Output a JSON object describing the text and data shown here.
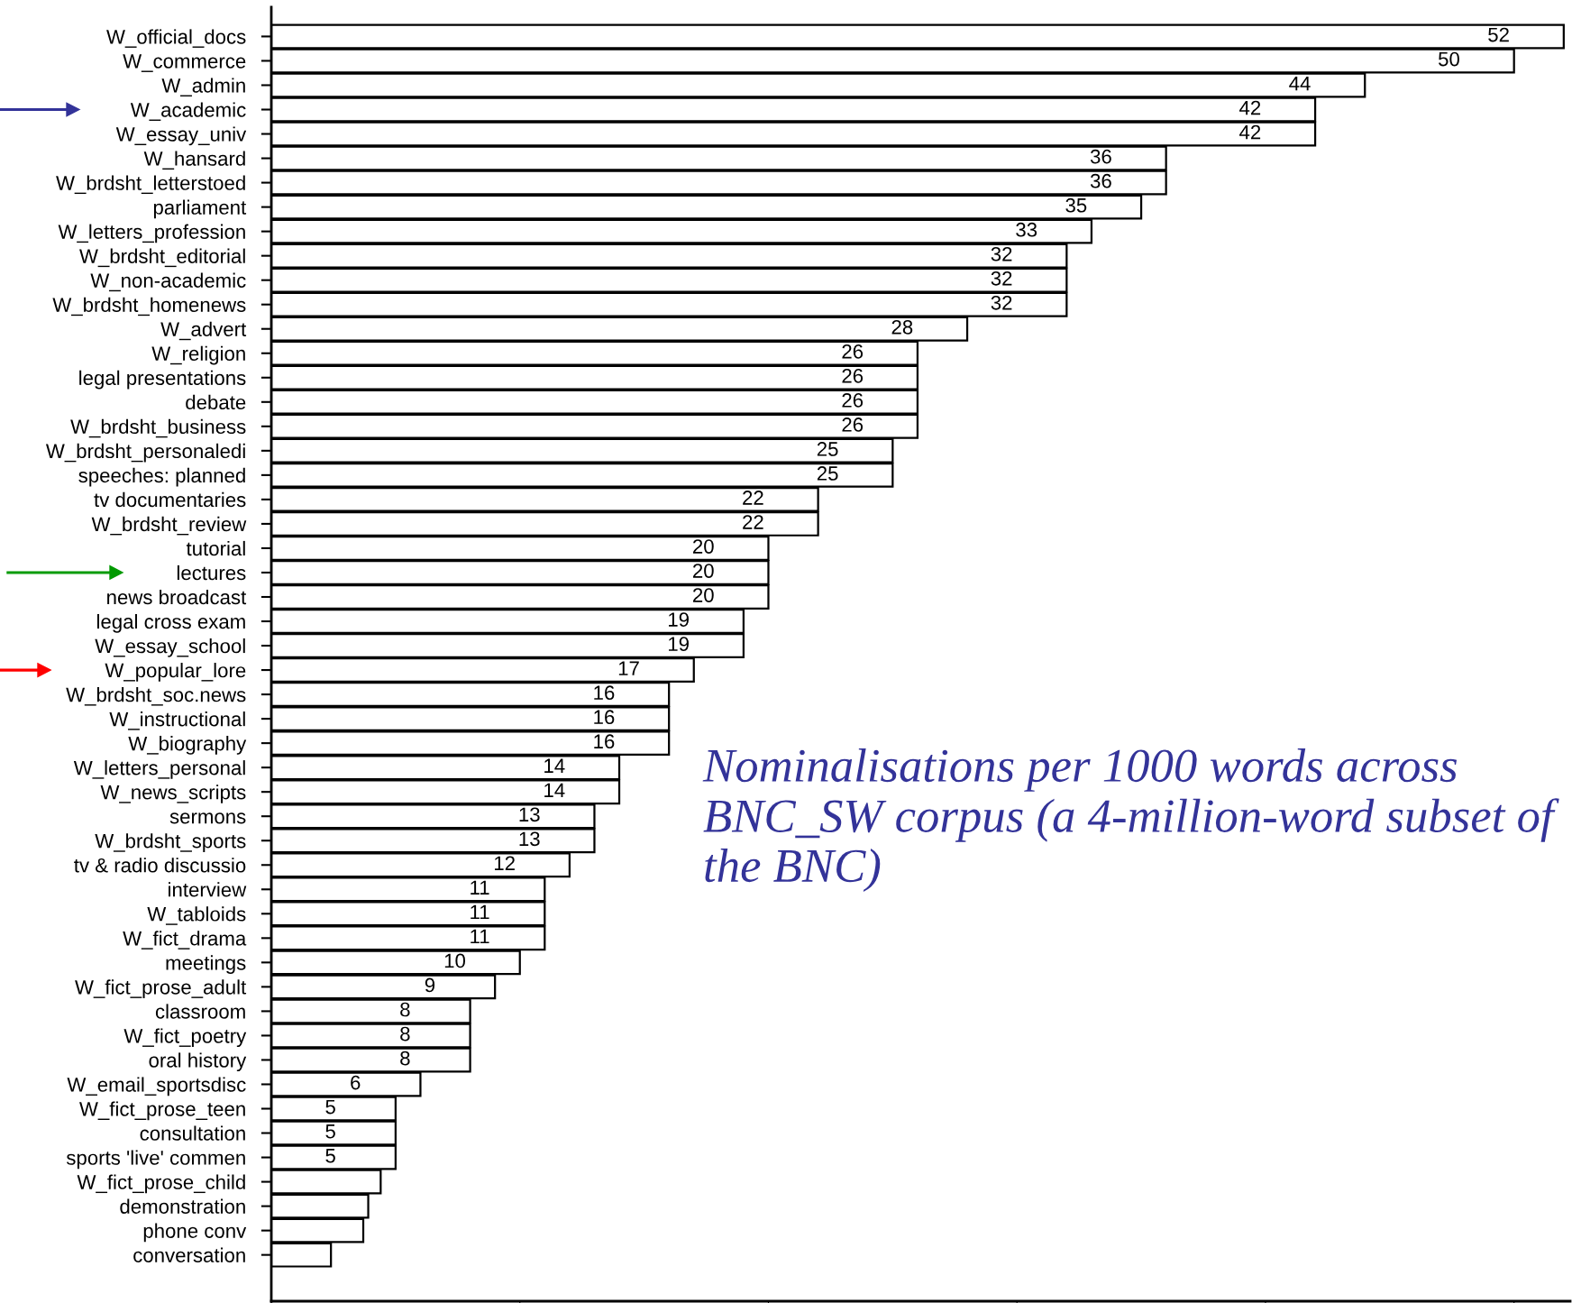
{
  "chart_data": {
    "type": "bar",
    "orientation": "horizontal",
    "title": "Nominalisations per 1000 words across BNC_SW corpus (a 4-million-word subset of the BNC)",
    "categories": [
      "W_official_docs",
      "W_commerce",
      "W_admin",
      "W_academic",
      "W_essay_univ",
      "W_hansard",
      "W_brdsht_letterstoed",
      "parliament",
      "W_letters_profession",
      "W_brdsht_editorial",
      "W_non-academic",
      "W_brdsht_homenews",
      "W_advert",
      "W_religion",
      "legal presentations",
      "debate",
      "W_brdsht_business",
      "W_brdsht_personaledi",
      "speeches: planned",
      "tv documentaries",
      "W_brdsht_review",
      "tutorial",
      "lectures",
      "news broadcast",
      "legal cross exam",
      "W_essay_school",
      "W_popular_lore",
      "W_brdsht_soc.news",
      "W_instructional",
      "W_biography",
      "W_letters_personal",
      "W_news_scripts",
      "sermons",
      "W_brdsht_sports",
      "tv & radio discussio",
      "interview",
      "W_tabloids",
      "W_fict_drama",
      "meetings",
      "W_fict_prose_adult",
      "classroom",
      "W_fict_poetry",
      "oral history",
      "W_email_sportsdisc",
      "W_fict_prose_teen",
      "consultation",
      "sports 'live' commen",
      "W_fict_prose_child",
      "demonstration",
      "phone conv",
      "conversation"
    ],
    "values": [
      52,
      50,
      44,
      42,
      42,
      36,
      36,
      35,
      33,
      32,
      32,
      32,
      28,
      26,
      26,
      26,
      26,
      25,
      25,
      22,
      22,
      20,
      20,
      20,
      19,
      19,
      17,
      16,
      16,
      16,
      14,
      14,
      13,
      13,
      12,
      11,
      11,
      11,
      10,
      9,
      8,
      8,
      8,
      6,
      5,
      5,
      5,
      4.4,
      3.9,
      3.7,
      2.4
    ],
    "value_labels": [
      "52",
      "50",
      "44",
      "42",
      "42",
      "36",
      "36",
      "35",
      "33",
      "32",
      "32",
      "32",
      "28",
      "26",
      "26",
      "26",
      "26",
      "25",
      "25",
      "22",
      "22",
      "20",
      "20",
      "20",
      "19",
      "19",
      "17",
      "16",
      "16",
      "16",
      "14",
      "14",
      "13",
      "13",
      "12",
      "11",
      "11",
      "11",
      "10",
      "9",
      "8",
      "8",
      "8",
      "6",
      "5",
      "5",
      "5",
      null,
      null,
      null,
      null
    ],
    "color": "#ffffff",
    "tick_labels": "y",
    "grid": false,
    "legend": false
  }
}
